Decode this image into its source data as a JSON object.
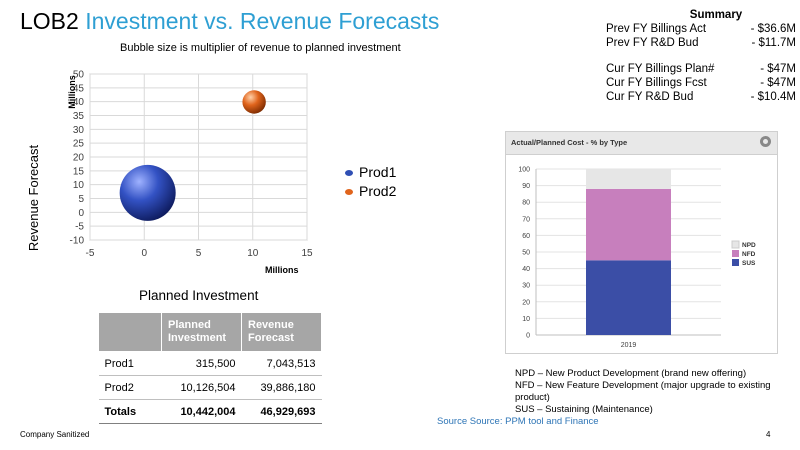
{
  "title": {
    "lead": "LOB2",
    "accent": "Investment vs. Revenue Forecasts"
  },
  "bubble_note": "Bubble size is multiplier of revenue to planned investment",
  "summary": {
    "heading": "Summary",
    "rows": [
      {
        "label": "Prev FY Billings Act",
        "value": "-  $36.6M"
      },
      {
        "label": "Prev FY R&D Bud",
        "value": "-  $11.7M"
      },
      {
        "label": "Cur FY Billings Plan#",
        "value": "-  $47M"
      },
      {
        "label": "Cur FY Billings Fcst",
        "value": "-  $47M"
      },
      {
        "label": "Cur FY R&D Bud",
        "value": "-  $10.4M"
      }
    ]
  },
  "chart_data": [
    {
      "type": "scatter",
      "variant": "bubble",
      "ylabel": "Revenue Forecast",
      "y_units": "Millions",
      "x_units": "Millions",
      "xlim": [
        -5,
        15
      ],
      "ylim": [
        -10,
        50
      ],
      "x_ticks": [
        "-5",
        "0",
        "5",
        "10",
        "15"
      ],
      "y_ticks": [
        "50",
        "45",
        "40",
        "35",
        "30",
        "25",
        "20",
        "15",
        "10",
        "5",
        "0",
        "-5",
        "-10"
      ],
      "grid": true,
      "legend": "right",
      "series": [
        {
          "name": "Prod1",
          "x": 0.3155,
          "y": 7.043513,
          "size": 22.3,
          "color": "#2f4fb4"
        },
        {
          "name": "Prod2",
          "x": 10.126504,
          "y": 39.88618,
          "size": 3.9,
          "color": "#e0641c"
        }
      ]
    },
    {
      "type": "bar",
      "variant": "stacked",
      "title": "Actual/Planned Cost - % by Type",
      "categories": [
        "2019"
      ],
      "ylim": [
        0,
        100
      ],
      "y_ticks": [
        "100",
        "90",
        "80",
        "70",
        "60",
        "50",
        "40",
        "30",
        "20",
        "10",
        "0"
      ],
      "legend": "right",
      "series": [
        {
          "name": "SUS",
          "values": [
            45
          ],
          "color": "#3b4ea6"
        },
        {
          "name": "NFD",
          "values": [
            43
          ],
          "color": "#c77fbd"
        },
        {
          "name": "NPD",
          "values": [
            12
          ],
          "color": "#e6e6e6"
        }
      ]
    }
  ],
  "investment_table": {
    "heading": "Planned Investment",
    "columns": [
      "",
      "Planned Investment",
      "Revenue Forecast"
    ],
    "rows": [
      [
        "Prod1",
        "315,500",
        "7,043,513"
      ],
      [
        "Prod2",
        "10,126,504",
        "39,886,180"
      ]
    ],
    "totals": [
      "Totals",
      "10,442,004",
      "46,929,693"
    ]
  },
  "definitions": [
    "NPD – New Product Development (brand new offering)",
    "NFD – New Feature Development (major upgrade to existing product)",
    "SUS – Sustaining (Maintenance)"
  ],
  "source": "Source Source: PPM tool and Finance",
  "footer": "Company Sanitized",
  "page_number": "4",
  "icons": {
    "settings": "gear-icon"
  }
}
